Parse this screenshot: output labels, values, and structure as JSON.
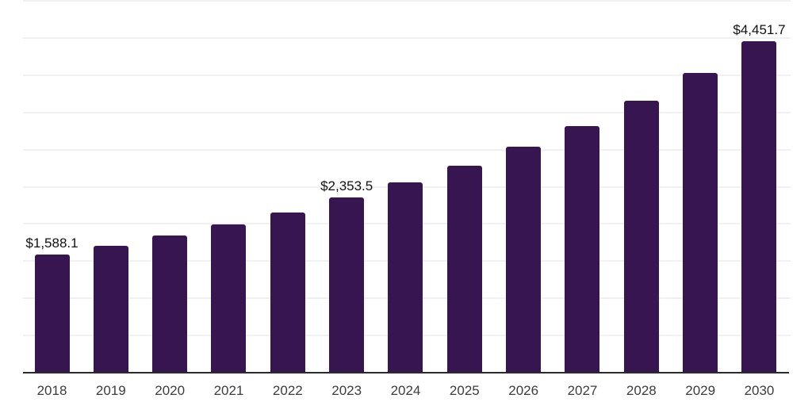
{
  "chart_data": {
    "type": "bar",
    "title": "",
    "xlabel": "",
    "ylabel": "",
    "categories": [
      "2018",
      "2019",
      "2020",
      "2021",
      "2022",
      "2023",
      "2024",
      "2025",
      "2026",
      "2027",
      "2028",
      "2029",
      "2030"
    ],
    "values": [
      1588.1,
      1705,
      1845,
      1990,
      2150,
      2353.5,
      2555,
      2780,
      3035,
      3320,
      3655,
      4030,
      4451.7
    ],
    "values_note": "Only 2018, 2023 and 2030 carry printed labels; other values estimated from the $500 gridline spacing",
    "value_labels": {
      "2018": "$1,588.1",
      "2023": "$2,353.5",
      "2030": "$4,451.7"
    },
    "ylim": [
      0,
      5000
    ],
    "gridline_step": 500,
    "grid": true,
    "legend": false,
    "y_axis_tick_labels_visible": false,
    "colors": {
      "bar": "#371551",
      "gridline": "#f1f1f1",
      "axis_line": "#2b2b2b",
      "tick_label": "#3c3c3c",
      "value_label": "#111111",
      "background": "#ffffff"
    }
  }
}
